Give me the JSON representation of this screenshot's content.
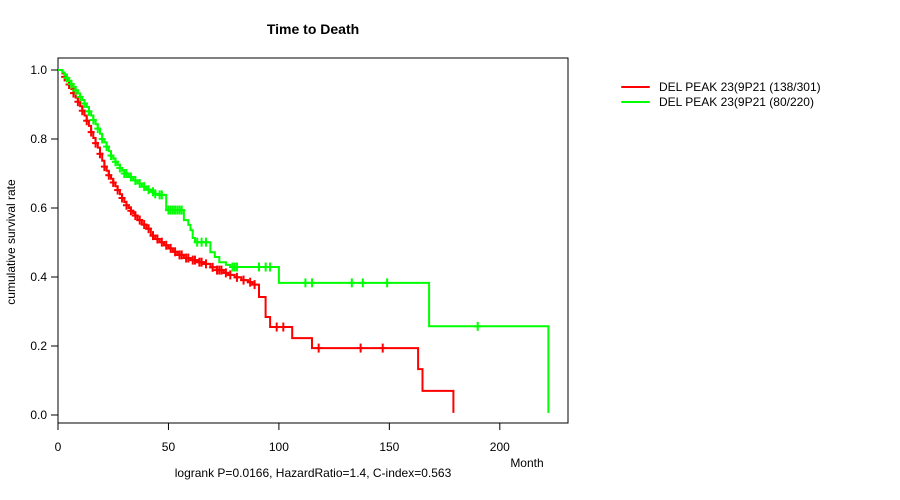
{
  "title": "Time to Death",
  "annotation": "logrank P=0.0166, HazardRatio=1.4, C-index=0.563",
  "legend": {
    "items": [
      {
        "label": "DEL PEAK 23(9P21 (138/301)",
        "color": "#ff0000"
      },
      {
        "label": "DEL PEAK 23(9P21 (80/220)",
        "color": "#00ff00"
      }
    ]
  },
  "chart_data": {
    "type": "line",
    "subtype": "kaplan-meier-step",
    "title": "Time to Death",
    "xlabel": "Month",
    "ylabel": "cumulative survival rate",
    "xlim": [
      0,
      230
    ],
    "ylim": [
      0.0,
      1.0
    ],
    "x_ticks": [
      0,
      50,
      100,
      150,
      200
    ],
    "x_tick_labels": [
      "0",
      "50",
      "100",
      "150",
      "200"
    ],
    "y_ticks": [
      0.0,
      0.2,
      0.4,
      0.6,
      0.8,
      1.0
    ],
    "y_tick_labels": [
      "0.0",
      "0.2",
      "0.4",
      "0.6",
      "0.8",
      "1.0"
    ],
    "grid": false,
    "legend_position": "right-outside",
    "frame_color": "#000000",
    "annotation": "logrank P=0.0166, HazardRatio=1.4, C-index=0.563",
    "series": [
      {
        "name": "DEL PEAK 23(9P21 (138/301)",
        "color": "#ff0000",
        "steps": [
          [
            0,
            1.0
          ],
          [
            2,
            0.99
          ],
          [
            3,
            0.98
          ],
          [
            4,
            0.97
          ],
          [
            5,
            0.958
          ],
          [
            6,
            0.945
          ],
          [
            7,
            0.933
          ],
          [
            8,
            0.92
          ],
          [
            9,
            0.908
          ],
          [
            10,
            0.895
          ],
          [
            11,
            0.882
          ],
          [
            12,
            0.868
          ],
          [
            13,
            0.853
          ],
          [
            14,
            0.838
          ],
          [
            15,
            0.82
          ],
          [
            16,
            0.803
          ],
          [
            17,
            0.788
          ],
          [
            18,
            0.775
          ],
          [
            19,
            0.757
          ],
          [
            20,
            0.737
          ],
          [
            21,
            0.72
          ],
          [
            22,
            0.708
          ],
          [
            23,
            0.695
          ],
          [
            24,
            0.685
          ],
          [
            25,
            0.674
          ],
          [
            26,
            0.663
          ],
          [
            27,
            0.652
          ],
          [
            28,
            0.64
          ],
          [
            29,
            0.629
          ],
          [
            30,
            0.617
          ],
          [
            31,
            0.608
          ],
          [
            32,
            0.6
          ],
          [
            33,
            0.592
          ],
          [
            34,
            0.585
          ],
          [
            35,
            0.578
          ],
          [
            36,
            0.565
          ],
          [
            38,
            0.552
          ],
          [
            40,
            0.54
          ],
          [
            42,
            0.52
          ],
          [
            44,
            0.51
          ],
          [
            46,
            0.501
          ],
          [
            48,
            0.492
          ],
          [
            50,
            0.483
          ],
          [
            52,
            0.473
          ],
          [
            54,
            0.464
          ],
          [
            57,
            0.455
          ],
          [
            60,
            0.449
          ],
          [
            63,
            0.443
          ],
          [
            66,
            0.438
          ],
          [
            69,
            0.428
          ],
          [
            72,
            0.42
          ],
          [
            75,
            0.412
          ],
          [
            77,
            0.406
          ],
          [
            80,
            0.399
          ],
          [
            83,
            0.391
          ],
          [
            86,
            0.385
          ],
          [
            88,
            0.378
          ],
          [
            91,
            0.342
          ],
          [
            94,
            0.284
          ],
          [
            96,
            0.255
          ],
          [
            106,
            0.223
          ],
          [
            115,
            0.194
          ],
          [
            163,
            0.133
          ],
          [
            165,
            0.07
          ],
          [
            179,
            0.006
          ]
        ],
        "censor_times": [
          3,
          5,
          7,
          9,
          11,
          13,
          15,
          17,
          19,
          21,
          23,
          25,
          27,
          29,
          31,
          33,
          35,
          37,
          39,
          41,
          43,
          45,
          47,
          49,
          51,
          53,
          55,
          56,
          58,
          59,
          61,
          62,
          64,
          65,
          67,
          70,
          72,
          73,
          74,
          76,
          78,
          81,
          84,
          87,
          89,
          99,
          102,
          118,
          137,
          147
        ]
      },
      {
        "name": "DEL PEAK 23(9P21 (80/220)",
        "color": "#00ff00",
        "steps": [
          [
            0,
            1.0
          ],
          [
            2,
            0.993
          ],
          [
            3,
            0.985
          ],
          [
            4,
            0.977
          ],
          [
            5,
            0.968
          ],
          [
            6,
            0.959
          ],
          [
            7,
            0.95
          ],
          [
            8,
            0.941
          ],
          [
            9,
            0.932
          ],
          [
            10,
            0.922
          ],
          [
            11,
            0.913
          ],
          [
            12,
            0.903
          ],
          [
            13,
            0.893
          ],
          [
            14,
            0.88
          ],
          [
            15,
            0.868
          ],
          [
            16,
            0.855
          ],
          [
            17,
            0.843
          ],
          [
            18,
            0.83
          ],
          [
            19,
            0.815
          ],
          [
            20,
            0.8
          ],
          [
            21,
            0.79
          ],
          [
            22,
            0.778
          ],
          [
            23,
            0.765
          ],
          [
            24,
            0.752
          ],
          [
            25,
            0.743
          ],
          [
            26,
            0.734
          ],
          [
            27,
            0.725
          ],
          [
            28,
            0.716
          ],
          [
            29,
            0.708
          ],
          [
            30,
            0.7
          ],
          [
            32,
            0.69
          ],
          [
            34,
            0.68
          ],
          [
            36,
            0.671
          ],
          [
            38,
            0.662
          ],
          [
            40,
            0.653
          ],
          [
            42,
            0.647
          ],
          [
            44,
            0.641
          ],
          [
            45,
            0.638
          ],
          [
            49,
            0.594
          ],
          [
            57,
            0.565
          ],
          [
            59,
            0.551
          ],
          [
            60,
            0.536
          ],
          [
            61,
            0.513
          ],
          [
            62,
            0.501
          ],
          [
            69,
            0.472
          ],
          [
            71,
            0.458
          ],
          [
            73,
            0.443
          ],
          [
            76,
            0.435
          ],
          [
            78,
            0.429
          ],
          [
            100,
            0.383
          ],
          [
            168,
            0.257
          ],
          [
            222,
            0.006
          ]
        ],
        "censor_times": [
          4,
          6,
          8,
          10,
          12,
          14,
          16,
          18,
          20,
          22,
          24,
          26,
          28,
          30,
          31,
          33,
          35,
          37,
          39,
          41,
          43,
          44,
          46,
          47,
          50,
          51,
          52,
          53,
          54,
          55,
          56,
          63,
          65,
          67,
          79,
          80,
          81,
          91,
          94,
          96,
          112,
          115,
          133,
          138,
          149,
          190
        ]
      }
    ]
  }
}
